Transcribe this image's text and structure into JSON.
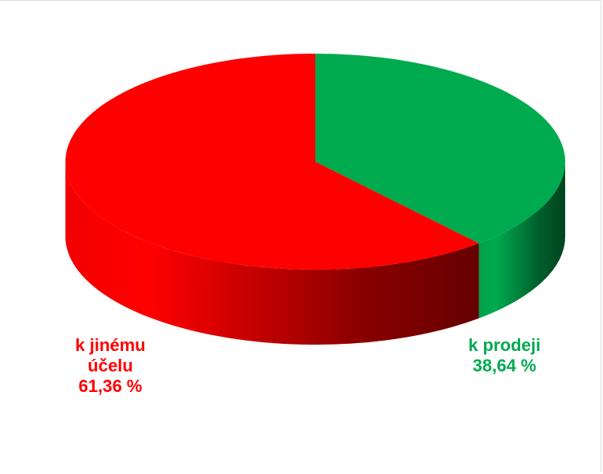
{
  "chart_data": {
    "type": "pie",
    "view": "3d",
    "categories": [
      "k prodeji",
      "k jinému účelu"
    ],
    "values": [
      38.64,
      61.36
    ],
    "value_labels": [
      "38,64 %",
      "61,36 %"
    ],
    "colors": [
      "#00aa4e",
      "#ff0000"
    ]
  }
}
